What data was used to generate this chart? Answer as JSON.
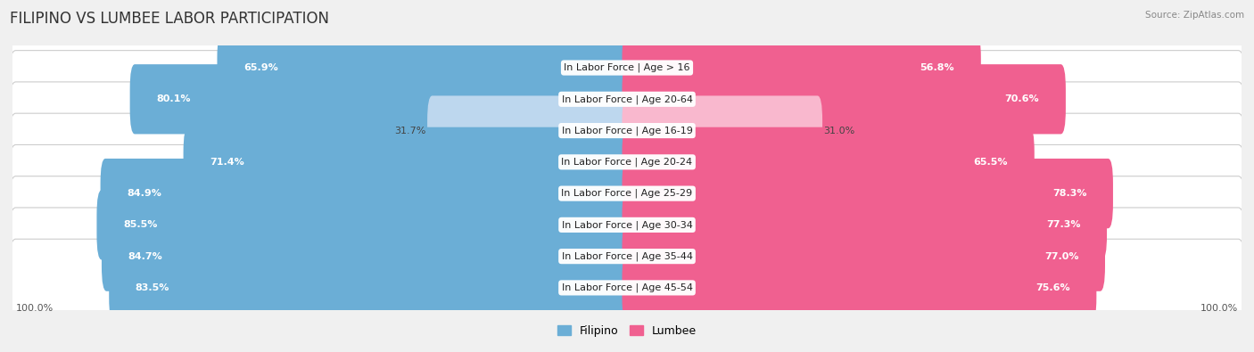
{
  "title": "FILIPINO VS LUMBEE LABOR PARTICIPATION",
  "source": "Source: ZipAtlas.com",
  "categories": [
    "In Labor Force | Age > 16",
    "In Labor Force | Age 20-64",
    "In Labor Force | Age 16-19",
    "In Labor Force | Age 20-24",
    "In Labor Force | Age 25-29",
    "In Labor Force | Age 30-34",
    "In Labor Force | Age 35-44",
    "In Labor Force | Age 45-54"
  ],
  "filipino_values": [
    65.9,
    80.1,
    31.7,
    71.4,
    84.9,
    85.5,
    84.7,
    83.5
  ],
  "lumbee_values": [
    56.8,
    70.6,
    31.0,
    65.5,
    78.3,
    77.3,
    77.0,
    75.6
  ],
  "filipino_color": "#6BAED6",
  "lumbee_color": "#F06090",
  "filipino_color_light": "#BDD7EE",
  "lumbee_color_light": "#F9B8CE",
  "bg_color": "#F0F0F0",
  "row_bg": "#FFFFFF",
  "title_fontsize": 12,
  "label_fontsize": 8,
  "value_fontsize": 8,
  "max_value": 100.0,
  "small_threshold": 50
}
